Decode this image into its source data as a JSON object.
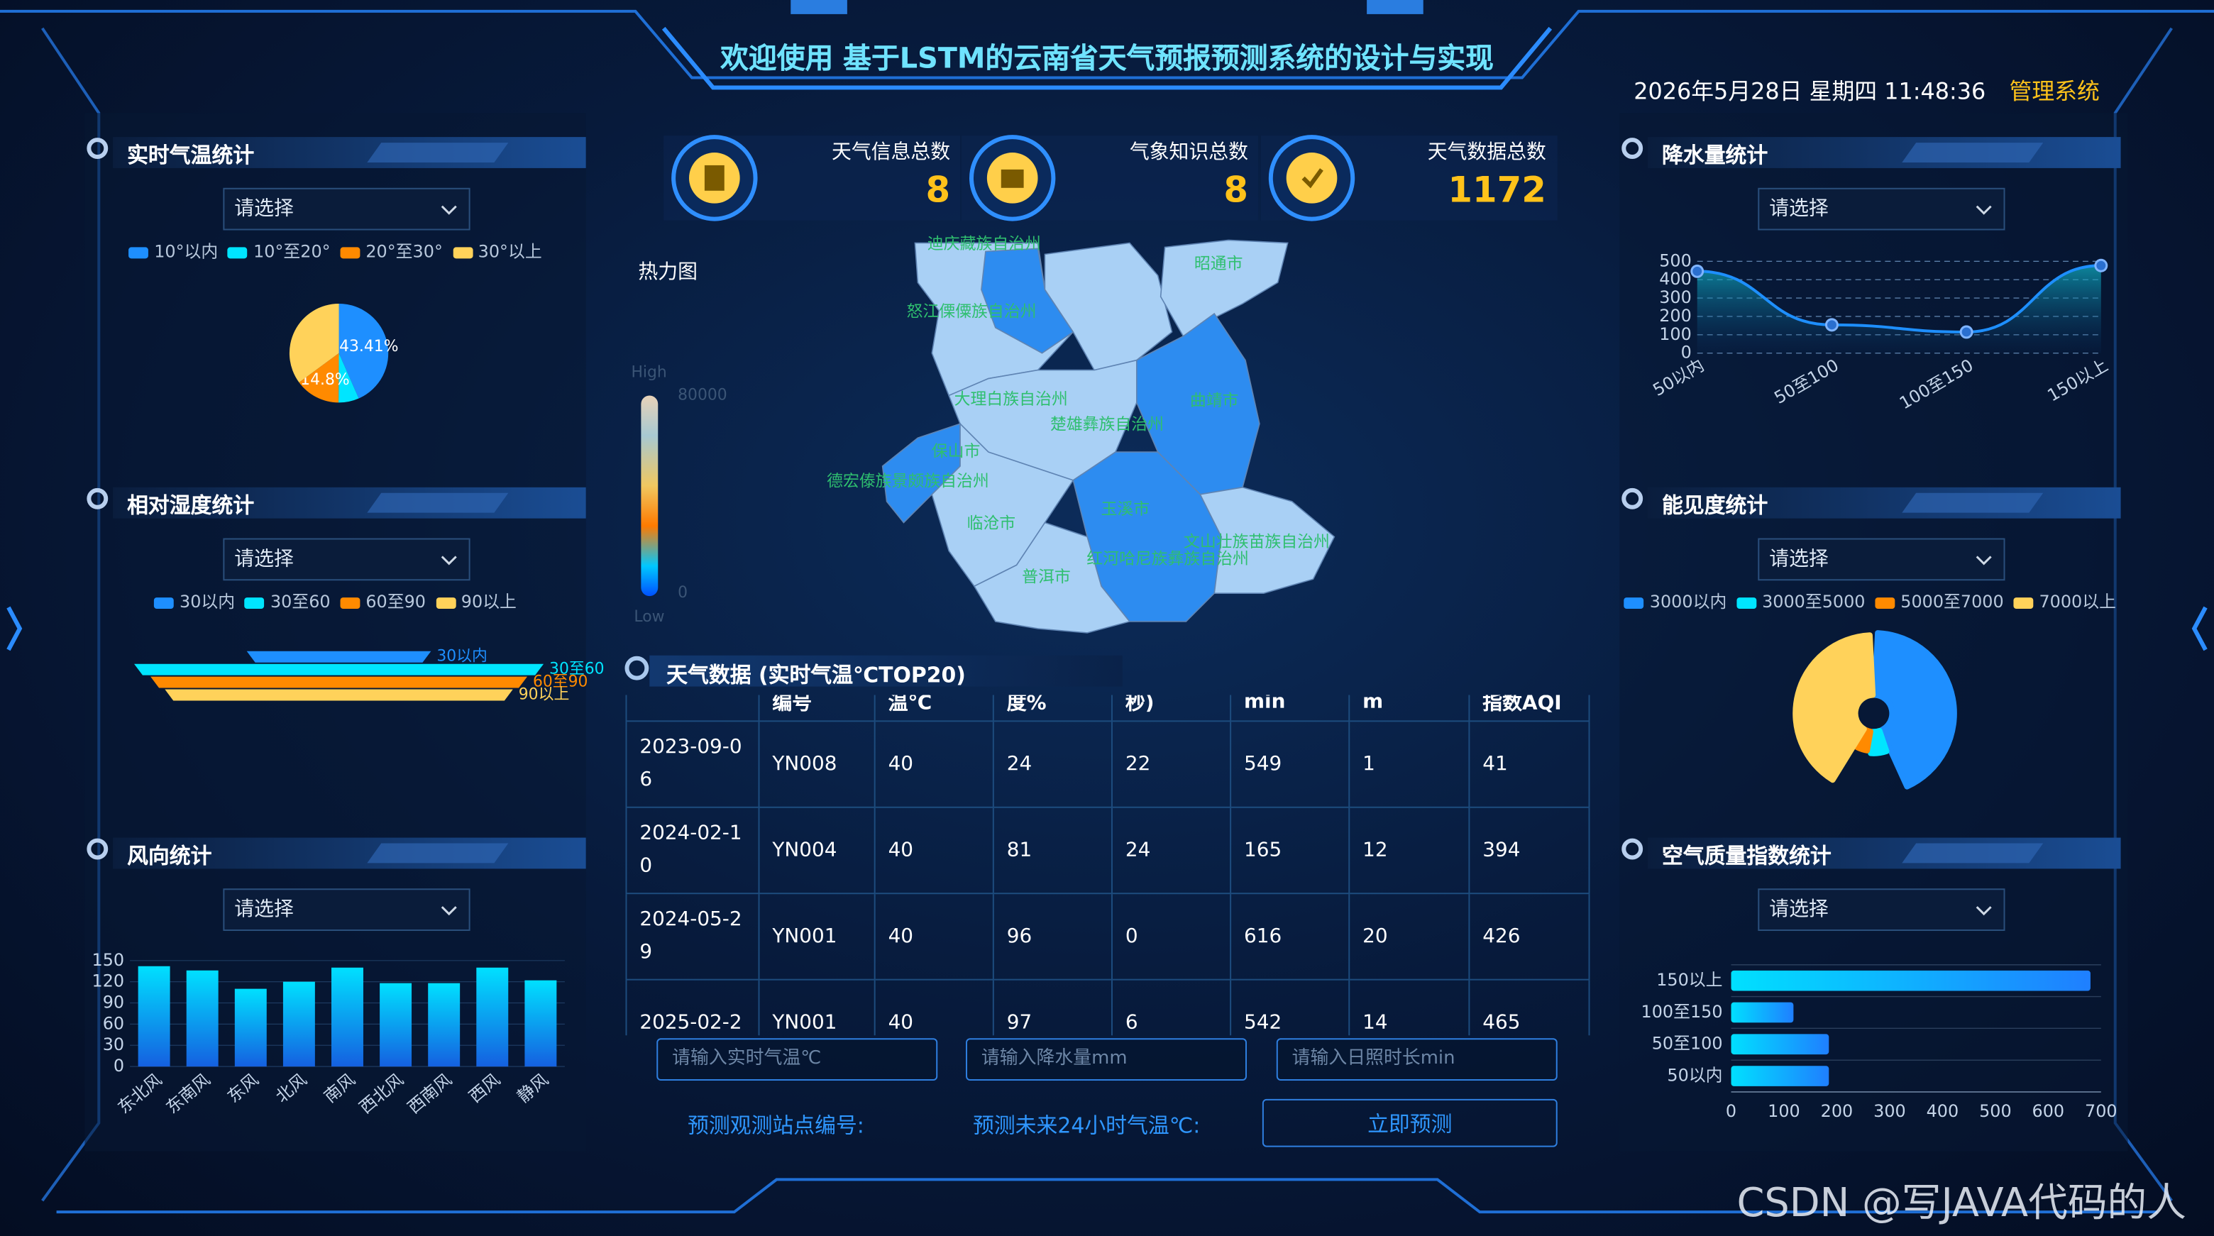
{
  "header": {
    "title": "欢迎使用 基于LSTM的云南省天气预报预测系统的设计与实现",
    "datetime": "2026年5月28日 星期四 11:48:36",
    "admin": "管理系统"
  },
  "stats": [
    {
      "label": "天气信息总数",
      "value": 8
    },
    {
      "label": "气象知识总数",
      "value": 8
    },
    {
      "label": "天气数据总数",
      "value": 1172
    }
  ],
  "heatmap": {
    "title": "热力图",
    "high": "High",
    "max": 80000,
    "min": 0,
    "low": "Low",
    "regions": [
      "迪庆藏族自治州",
      "昭通市",
      "怒江傈僳族自治州",
      "大理白族自治州",
      "楚雄彝族自治州",
      "曲靖市",
      "保山市",
      "德宏傣族景颇族自治州",
      "临沧市",
      "玉溪市",
      "文山壮族苗族自治州",
      "红河哈尼族彝族自治州",
      "普洱市"
    ]
  },
  "table": {
    "title": "天气数据 (实时气温℃TOP20)",
    "headers": [
      null,
      "编号",
      "温℃",
      "度%",
      "秒)",
      "min",
      "m",
      "指数AQI"
    ],
    "rows": [
      [
        "2023-09-06",
        "YN008",
        "40",
        "24",
        "22",
        "549",
        "1",
        "41"
      ],
      [
        "2024-02-10",
        "YN004",
        "40",
        "81",
        "24",
        "165",
        "12",
        "394"
      ],
      [
        "2024-05-29",
        "YN001",
        "40",
        "96",
        "0",
        "616",
        "20",
        "426"
      ],
      [
        "2025-02-2",
        "YN001",
        "40",
        "97",
        "6",
        "542",
        "14",
        "465"
      ]
    ]
  },
  "form": {
    "inputs": [
      "请输入实时气温℃",
      "请输入降水量mm",
      "请输入日照时长min"
    ],
    "labels": [
      "预测观测站点编号:",
      "预测未来24小时气温℃:"
    ],
    "button": "立即预测"
  },
  "watermark": "CSDN @写JAVA代码的人",
  "chart_data": [
    {
      "type": "pie",
      "title": "实时气温统计",
      "select": "请选择",
      "categories": [
        "10°以内",
        "10°至20°",
        "20°至30°",
        "30°以上"
      ],
      "values": [
        43.41,
        6.7,
        14.8,
        35.09
      ],
      "value_labels": [
        "43.41%",
        null,
        "14.8%",
        null
      ],
      "colors": [
        "#1e8fff",
        "#00e5ff",
        "#ff8a00",
        "#ffd25a"
      ]
    },
    {
      "type": "funnel",
      "title": "相对湿度统计",
      "select": "请选择",
      "categories": [
        "30以内",
        "30至60",
        "60至90",
        "90以上"
      ],
      "values": [
        45,
        100,
        92,
        85
      ],
      "colors": [
        "#1e8fff",
        "#00e5ff",
        "#ff8a00",
        "#ffd25a"
      ]
    },
    {
      "type": "bar",
      "title": "风向统计",
      "select": "请选择",
      "categories": [
        "东北风",
        "东南风",
        "东风",
        "北风",
        "南风",
        "西北风",
        "西南风",
        "西风",
        "静风"
      ],
      "values": [
        142,
        136,
        110,
        120,
        140,
        118,
        118,
        140,
        122
      ],
      "color": "#00e0ff",
      "ylim": [
        0,
        150
      ],
      "yticks": [
        0,
        30,
        60,
        90,
        120,
        150
      ],
      "grid": true
    },
    {
      "type": "line",
      "title": "降水量统计",
      "select": "请选择",
      "categories": [
        "50以内",
        "50至100",
        "100至150",
        "150以上"
      ],
      "values": [
        446,
        154,
        115,
        477
      ],
      "color": "#1e8fff",
      "ylim": [
        0,
        500
      ],
      "yticks": [
        0,
        100,
        200,
        300,
        400,
        500
      ],
      "grid": true
    },
    {
      "type": "pie",
      "rose": true,
      "title": "能见度统计",
      "select": "请选择",
      "categories": [
        "3000以内",
        "3000至5000",
        "5000至7000",
        "7000以上"
      ],
      "values": [
        44,
        8,
        6,
        42
      ],
      "colors": [
        "#1e8fff",
        "#00e5ff",
        "#ff8a00",
        "#ffd25a"
      ]
    },
    {
      "type": "barh",
      "title": "空气质量指数统计",
      "select": "请选择",
      "categories": [
        "50以内",
        "50至100",
        "100至150",
        "150以上"
      ],
      "values": [
        185,
        185,
        118,
        680
      ],
      "color": "#00e0ff",
      "xlim": [
        0,
        700
      ],
      "xticks": [
        0,
        100,
        200,
        300,
        400,
        500,
        600,
        700
      ]
    }
  ]
}
